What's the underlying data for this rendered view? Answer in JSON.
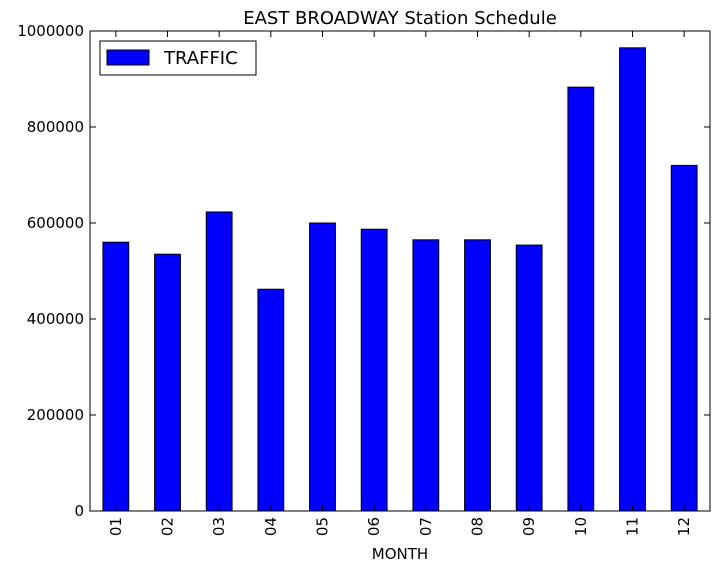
{
  "chart_data": {
    "type": "bar",
    "title": "EAST BROADWAY Station Schedule",
    "xlabel": "MONTH",
    "ylabel": "",
    "categories": [
      "01",
      "02",
      "03",
      "04",
      "05",
      "06",
      "07",
      "08",
      "09",
      "10",
      "11",
      "12"
    ],
    "series": [
      {
        "name": "TRAFFIC",
        "color": "#0000ff",
        "values": [
          560000,
          535000,
          623000,
          462000,
          600000,
          587000,
          565000,
          565000,
          554000,
          883000,
          965000,
          720000
        ]
      }
    ],
    "ylim": [
      0,
      1000000
    ],
    "yticks": [
      0,
      200000,
      400000,
      600000,
      800000,
      1000000
    ],
    "ytick_labels": [
      "0",
      "200000",
      "400000",
      "600000",
      "800000",
      "1000000"
    ],
    "grid": false,
    "legend_position": "top-left"
  }
}
